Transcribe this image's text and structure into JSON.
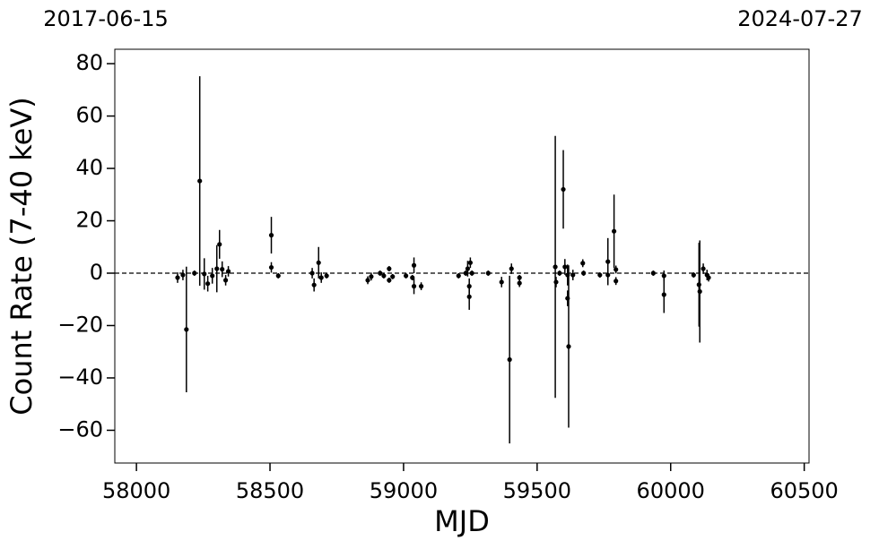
{
  "chart_data": {
    "type": "scatter",
    "xlabel": "MJD",
    "ylabel": "Count Rate (7-40 keV)",
    "xlim": [
      57919,
      60518
    ],
    "ylim": [
      -72.5,
      85.5
    ],
    "xticks": [
      58000,
      58500,
      59000,
      59500,
      60000,
      60500
    ],
    "yticks": [
      {
        "value": -60,
        "label": "−60"
      },
      {
        "value": -40,
        "label": "−40"
      },
      {
        "value": -20,
        "label": "−20"
      },
      0,
      20,
      40,
      60,
      80
    ],
    "x2ticks": [
      {
        "value": 57919,
        "label": "2017-06-15"
      },
      {
        "value": 60518,
        "label": "2024-07-27"
      }
    ],
    "hline": 0,
    "series": [
      {
        "color": "#000000",
        "x": [
          58154,
          58174,
          58187,
          58217,
          58237,
          58254,
          58267,
          58284,
          58301,
          58311,
          58321,
          58334,
          58344,
          58505,
          58505,
          58531,
          58658,
          58665,
          58682,
          58692,
          58712,
          58866,
          58879,
          58912,
          58926,
          58946,
          58946,
          58959,
          59009,
          59033,
          59039,
          59039,
          59066,
          59206,
          59233,
          59240,
          59246,
          59246,
          59250,
          59256,
          59317,
          59367,
          59397,
          59404,
          59434,
          59434,
          59568,
          59571,
          59584,
          59598,
          59604,
          59614,
          59614,
          59618,
          59634,
          59671,
          59674,
          59735,
          59765,
          59765,
          59788,
          59795,
          59795,
          59935,
          59975,
          59975,
          60086,
          60106,
          60109,
          60122,
          60136,
          60142
        ],
        "values": [
          -1.7,
          -0.7,
          -21.5,
          0,
          35.2,
          -0.3,
          -4,
          -1,
          1.7,
          11,
          1.5,
          -2.7,
          0.7,
          14.5,
          2.2,
          -1,
          0,
          -4.5,
          4,
          -1.7,
          -1,
          -2.7,
          -1.3,
          0,
          -1,
          1.7,
          -2.7,
          -1.3,
          -1,
          -1.7,
          3,
          -5,
          -5,
          -1,
          0,
          1.7,
          -5,
          -9,
          4,
          0,
          0,
          -3.4,
          -33,
          1.7,
          -3.8,
          -1.7,
          2.4,
          -3.4,
          0,
          32,
          2.4,
          -0.7,
          -9.6,
          -28,
          -0.7,
          3.8,
          0,
          -0.7,
          4.4,
          -0.7,
          16,
          1.4,
          -3,
          0,
          -8.2,
          -1,
          -0.7,
          -4.4,
          -7,
          1.7,
          -0.7,
          -1.7
        ],
        "errors": [
          2,
          2,
          24,
          1,
          40,
          6,
          3,
          3,
          9,
          5.5,
          3,
          2,
          2,
          7,
          2,
          1,
          2,
          2.5,
          6,
          2,
          1,
          1.5,
          1.5,
          1,
          1,
          1,
          1,
          1,
          1,
          1,
          3,
          3,
          1.5,
          1,
          1,
          3,
          3,
          5,
          2,
          1,
          1,
          2,
          32,
          2,
          1.5,
          1,
          50,
          2,
          1,
          15,
          3,
          4,
          3,
          31,
          2,
          1.5,
          1,
          1,
          9,
          2,
          14,
          1.5,
          1.5,
          1,
          7,
          2,
          1,
          16,
          19.5,
          2,
          2,
          1.5
        ]
      }
    ]
  }
}
